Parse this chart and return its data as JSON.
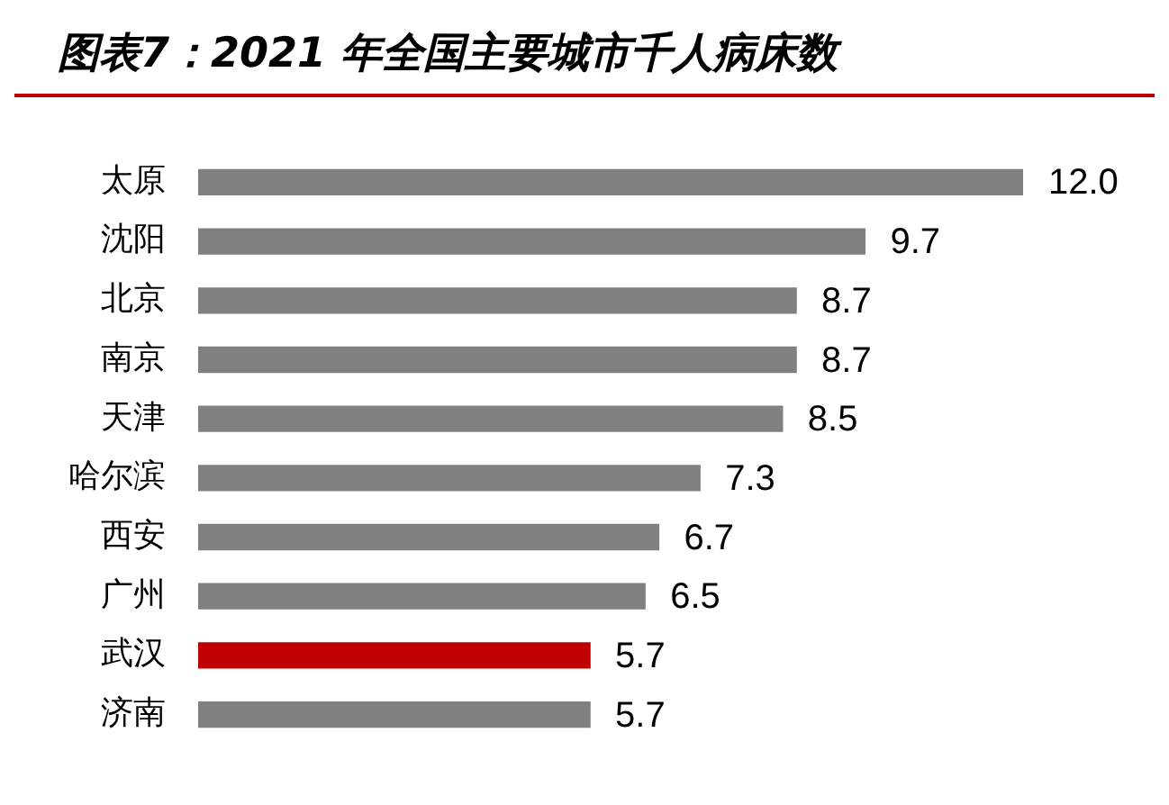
{
  "chart_data": {
    "type": "bar",
    "orientation": "horizontal",
    "title": "图表7：2021 年全国主要城市千人病床数",
    "categories": [
      "太原",
      "沈阳",
      "北京",
      "南京",
      "天津",
      "哈尔滨",
      "西安",
      "广州",
      "武汉",
      "济南"
    ],
    "values": [
      12.0,
      9.7,
      8.7,
      8.7,
      8.5,
      7.3,
      6.7,
      6.5,
      5.7,
      5.7
    ],
    "value_labels": [
      "12.0",
      "9.7",
      "8.7",
      "8.7",
      "8.5",
      "7.3",
      "6.7",
      "6.5",
      "5.7",
      "5.7"
    ],
    "colors": [
      "#808080",
      "#808080",
      "#808080",
      "#808080",
      "#808080",
      "#808080",
      "#808080",
      "#808080",
      "#c00000",
      "#808080"
    ],
    "tick_labels": "y"
  }
}
